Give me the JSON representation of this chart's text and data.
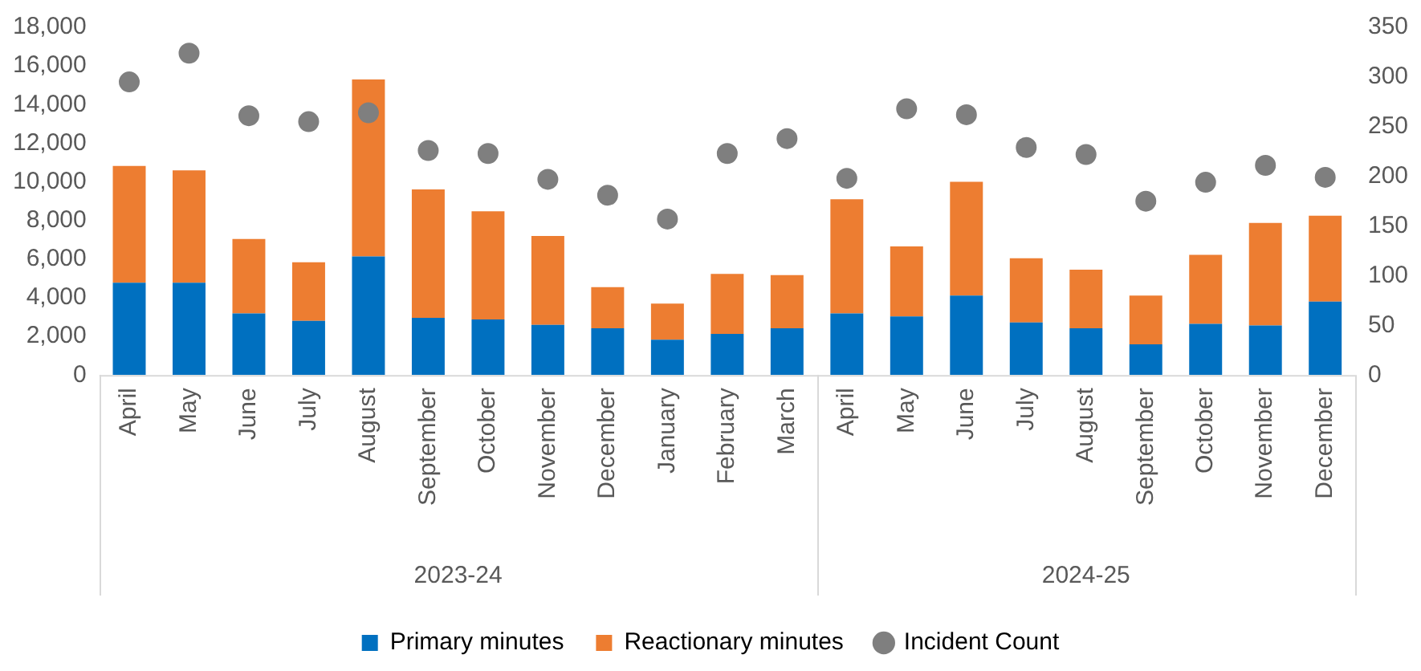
{
  "chart_data": {
    "type": "bar",
    "stacked": true,
    "categories": [
      "April",
      "May",
      "June",
      "July",
      "August",
      "September",
      "October",
      "November",
      "December",
      "January",
      "February",
      "March",
      "April",
      "May",
      "June",
      "July",
      "August",
      "September",
      "October",
      "November",
      "December"
    ],
    "series": [
      {
        "name": "Primary minutes",
        "color": "#0070c0",
        "values": [
          4780,
          4780,
          3190,
          2800,
          6140,
          2960,
          2880,
          2600,
          2420,
          1830,
          2130,
          2420,
          3190,
          3030,
          4110,
          2720,
          2420,
          1590,
          2650,
          2570,
          3800
        ]
      },
      {
        "name": "Reactionary minutes",
        "color": "#ed7d31",
        "values": [
          6040,
          5810,
          3850,
          3040,
          9160,
          6650,
          5600,
          4600,
          2130,
          1870,
          3110,
          2750,
          5910,
          3630,
          5890,
          3320,
          3030,
          2520,
          3570,
          5300,
          4450
        ]
      },
      {
        "name": "Incident Count",
        "type": "scatter",
        "axis": "y2",
        "color": "#7f7f7f",
        "values": [
          295,
          324,
          261,
          255,
          264,
          226,
          223,
          197,
          181,
          157,
          223,
          238,
          198,
          268,
          262,
          229,
          222,
          175,
          194,
          211,
          199
        ]
      }
    ],
    "ylim": [
      0,
      18000
    ],
    "yticks": [
      {
        "value": 0,
        "label": "0"
      },
      {
        "value": 2000,
        "label": "2,000"
      },
      {
        "value": 4000,
        "label": "4,000"
      },
      {
        "value": 6000,
        "label": "6,000"
      },
      {
        "value": 8000,
        "label": "8,000"
      },
      {
        "value": 10000,
        "label": "10,000"
      },
      {
        "value": 12000,
        "label": "12,000"
      },
      {
        "value": 14000,
        "label": "14,000"
      },
      {
        "value": 16000,
        "label": "16,000"
      },
      {
        "value": 18000,
        "label": "18,000"
      }
    ],
    "y2lim": [
      0,
      350
    ],
    "y2ticks": [
      0,
      50,
      100,
      150,
      200,
      250,
      300,
      350
    ],
    "annotations": [
      "2023-24",
      "2024-25"
    ],
    "marker": "circle",
    "legend": "bottom",
    "grid": false
  }
}
